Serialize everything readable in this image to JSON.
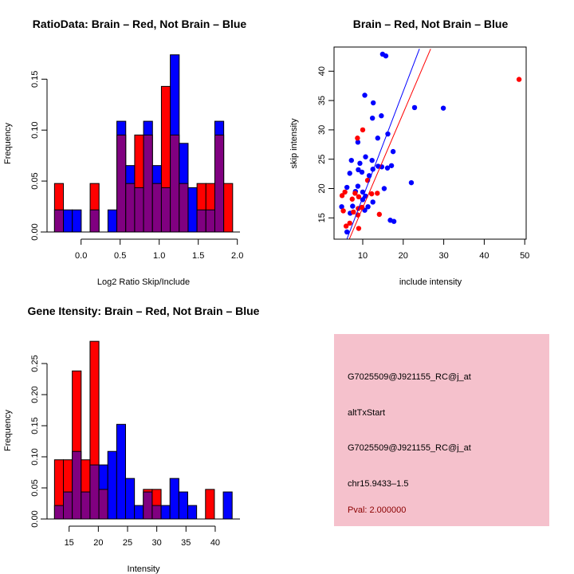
{
  "colors": {
    "red": "#ff0000",
    "blue": "#0000ff",
    "overlap": "#800080",
    "panel": "#f5c1cc",
    "pval": "#8b0000"
  },
  "chart_data": [
    {
      "type": "bar",
      "title": "RatioData: Brain – Red, Not Brain – Blue",
      "xlabel": "Log2 Ratio Skip/Include",
      "ylabel": "Frequency",
      "xticks": [
        "0.0",
        "0.5",
        "1.0",
        "1.5",
        "2.0"
      ],
      "xtick_values": [
        0,
        0.5,
        1,
        1.5,
        2
      ],
      "yticks": [
        "0.00",
        "0.05",
        "0.10",
        "0.15"
      ],
      "ytick_values": [
        0,
        0.05,
        0.1,
        0.15
      ],
      "bin_start": -0.34,
      "bin_width": 0.114,
      "series": [
        {
          "name": "Brain",
          "color": "red",
          "values": [
            0.0476,
            0,
            0,
            0,
            0.0476,
            0,
            0,
            0.0952,
            0.0476,
            0.0952,
            0.0952,
            0.0476,
            0.1429,
            0.0952,
            0.0476,
            0,
            0.0476,
            0.0476,
            0.0952,
            0.0476
          ]
        },
        {
          "name": "Not Brain",
          "color": "blue",
          "values": [
            0.0217,
            0.0217,
            0.0217,
            0,
            0.0217,
            0,
            0.0217,
            0.1087,
            0.0652,
            0.0435,
            0.1087,
            0.0652,
            0.0435,
            0.1739,
            0.087,
            0.0435,
            0.0217,
            0.0217,
            0.1087,
            0
          ]
        }
      ]
    },
    {
      "type": "scatter",
      "title": "Brain – Red, Not Brain – Blue",
      "xlabel": "include intensity",
      "ylabel": "skip intensity",
      "xlim": [
        3.5,
        51
      ],
      "ylim": [
        11.2,
        43.8
      ],
      "xticks": [
        "10",
        "20",
        "30",
        "40",
        "50"
      ],
      "xtick_values": [
        10,
        20,
        30,
        40,
        50
      ],
      "yticks": [
        "15",
        "20",
        "25",
        "30",
        "35",
        "40"
      ],
      "ytick_values": [
        15,
        20,
        25,
        30,
        35,
        40
      ],
      "series": [
        {
          "name": "Not Brain",
          "color": "blue",
          "x": [
            14.9,
            15.7,
            10.5,
            12.6,
            12.4,
            14.6,
            22.8,
            29.9,
            16.2,
            13.7,
            8.8,
            17.5,
            10.7,
            7.2,
            12.3,
            9.3,
            6.8,
            8.9,
            9.8,
            12.5,
            13.8,
            14.7,
            16.1,
            17.1,
            11.6,
            22.0,
            15.3,
            6.1,
            8.8,
            8.2,
            10.0,
            10.7,
            10.0,
            7.5,
            12.5,
            11.3,
            10.5,
            4.8,
            6.9,
            6.1,
            16.8,
            17.7
          ],
          "y": [
            42.9,
            42.6,
            35.9,
            34.6,
            32.0,
            32.4,
            33.8,
            33.7,
            29.3,
            28.6,
            27.9,
            26.3,
            25.4,
            24.8,
            24.8,
            24.3,
            22.6,
            23.2,
            22.8,
            23.3,
            23.8,
            23.7,
            23.5,
            23.9,
            22.2,
            21.0,
            20.0,
            20.2,
            20.4,
            19.5,
            19.4,
            18.7,
            18.1,
            17.0,
            17.7,
            16.9,
            16.3,
            16.9,
            15.8,
            12.6,
            14.6,
            14.4
          ],
          "fit": {
            "intercept": 0.36,
            "slope": 1.81
          }
        },
        {
          "name": "Brain",
          "color": "red",
          "x": [
            48.6,
            10.0,
            8.7,
            11.2,
            4.9,
            5.6,
            7.4,
            8.1,
            9.0,
            12.2,
            13.6,
            5.2,
            7.7,
            8.9,
            9.8,
            8.8,
            14.1,
            5.9,
            6.8,
            9.0
          ],
          "y": [
            38.6,
            30.0,
            28.6,
            21.4,
            18.8,
            19.4,
            18.2,
            19.2,
            18.6,
            19.1,
            19.2,
            16.2,
            16.0,
            16.6,
            16.8,
            15.5,
            15.6,
            13.6,
            14.1,
            13.2
          ],
          "fit": {
            "intercept": 0.59,
            "slope": 1.614
          }
        }
      ]
    },
    {
      "type": "bar",
      "title": "Gene Itensity: Brain – Red, Not Brain – Blue",
      "xlabel": "Intensity",
      "ylabel": "Frequency",
      "xticks": [
        "15",
        "20",
        "25",
        "30",
        "35",
        "40"
      ],
      "xtick_values": [
        15,
        20,
        25,
        30,
        35,
        40
      ],
      "yticks": [
        "0.00",
        "0.05",
        "0.10",
        "0.15",
        "0.20",
        "0.25"
      ],
      "ytick_values": [
        0,
        0.05,
        0.1,
        0.15,
        0.2,
        0.25
      ],
      "bin_start": 12.5,
      "bin_width": 1.52,
      "series": [
        {
          "name": "Brain",
          "color": "red",
          "values": [
            0.0952,
            0.0952,
            0.2381,
            0.0952,
            0.2857,
            0.0476,
            0,
            0,
            0,
            0,
            0.0476,
            0.0476,
            0,
            0,
            0,
            0,
            0,
            0.0476,
            0,
            0
          ]
        },
        {
          "name": "Not Brain",
          "color": "blue",
          "values": [
            0.0217,
            0.0435,
            0.1087,
            0.0435,
            0.087,
            0.087,
            0.1087,
            0.1522,
            0.0652,
            0.0217,
            0.0435,
            0.0217,
            0.0217,
            0.0652,
            0.0435,
            0.0217,
            0,
            0,
            0,
            0.0435
          ]
        }
      ]
    }
  ],
  "info_panel": {
    "lines": [
      "G7025509@J921155_RC@j_at",
      "altTxStart",
      "G7025509@J921155_RC@j_at",
      "chr15.9433–1.5"
    ],
    "pval": "Pval: 2.000000"
  }
}
